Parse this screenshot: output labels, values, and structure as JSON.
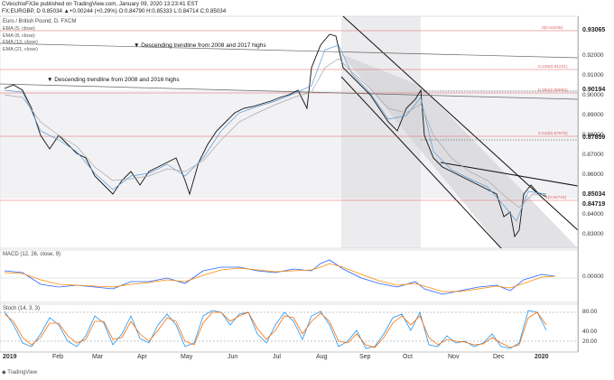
{
  "header": {
    "line1": "CVecchioFX3e published on TradingView.com, January 09, 2020 13:23:41 EST",
    "line2": "FX:EURGBP, D 0.85034 ▲+0.00244 (+0.29%) O:0.84790 H:0.85333 L:0.84714 C:0.85034"
  },
  "main": {
    "title": "Euro / British Pound, D, FXCM",
    "legend": [
      "EMA (5, close)",
      "EMA (8, close)",
      "EMA (13, close)",
      "EMA (21, close)"
    ],
    "annotations": {
      "trend1": "Descending trendline from 2008 and 2017 highs",
      "trend2": "Descending trendline from 2008 and 2016 highs"
    },
    "fib_labels": [
      "0(0.93245)",
      "0.236(0.91231)",
      "0.382(0.89984)",
      "0.618(0.87979)",
      "1(0.84718)"
    ],
    "price_axis": [
      "0.92000",
      "0.91000",
      "0.90000",
      "0.89000",
      "0.88000",
      "0.87000",
      "0.86000",
      "0.84000",
      "0.83000"
    ],
    "price_tags": [
      {
        "label": "0.93065",
        "bg": "#ffffff",
        "fg": "#111111"
      },
      {
        "label": "0.90194",
        "bg": "#ffffff",
        "fg": "#111111"
      },
      {
        "label": "0.87859",
        "bg": "#ffffff",
        "fg": "#111111"
      },
      {
        "label": "0.85034",
        "bg": "#ffffff",
        "fg": "#111111"
      },
      {
        "label": "0.84719",
        "bg": "#ffffff",
        "fg": "#111111"
      }
    ]
  },
  "macd": {
    "title": "MACD (12, 26, close, 9)",
    "axis": [
      "0.00000"
    ]
  },
  "stoch": {
    "title": "Stoch (14, 3, 3)",
    "axis": [
      "80.00",
      "40.00",
      "20.00"
    ]
  },
  "xaxis": [
    "2019",
    "Feb",
    "Mar",
    "Apr",
    "May",
    "Jun",
    "Jul",
    "Aug",
    "Sep",
    "Oct",
    "Nov",
    "Dec",
    "2020"
  ],
  "footer": "TradingView",
  "colors": {
    "ema5": "#5b9bd5",
    "ema8": "#8fb9e0",
    "ema13": "#a7a7a7",
    "ema21": "#c7c7c7",
    "fib": "#e06060",
    "macd": "#2962ff",
    "signal": "#ff8a00",
    "stochK": "#2196f3",
    "stochD": "#ff6d00"
  }
}
